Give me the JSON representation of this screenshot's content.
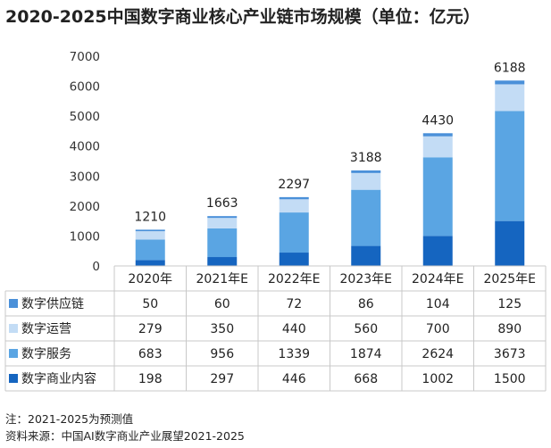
{
  "title": "2020-2025中国数字商业核心产业链市场规模（单位：亿元）",
  "notes": {
    "note": "注：2021-2025为预测值",
    "source": "资料来源：中国AI数字商业产业展望2021-2025"
  },
  "chart_data": {
    "type": "bar",
    "stacked": true,
    "categories": [
      "2020年",
      "2021年E",
      "2022年E",
      "2023年E",
      "2024年E",
      "2025年E"
    ],
    "ylim": [
      0,
      7000
    ],
    "yticks": [
      0,
      1000,
      2000,
      3000,
      4000,
      5000,
      6000,
      7000
    ],
    "totals": [
      1210,
      1663,
      2297,
      3188,
      4430,
      6188
    ],
    "series": [
      {
        "name": "数字商业内容",
        "color": "#1565c0",
        "values": [
          198,
          297,
          446,
          668,
          1002,
          1500
        ]
      },
      {
        "name": "数字服务",
        "color": "#5aa5e3",
        "values": [
          683,
          956,
          1339,
          1874,
          2624,
          3673
        ]
      },
      {
        "name": "数字运营",
        "color": "#c3dcf5",
        "values": [
          279,
          350,
          440,
          560,
          700,
          890
        ]
      },
      {
        "name": "数字供应链",
        "color": "#4a90d9",
        "values": [
          50,
          60,
          72,
          86,
          104,
          125
        ]
      }
    ],
    "table_row_order": [
      "数字供应链",
      "数字运营",
      "数字服务",
      "数字商业内容"
    ],
    "grid": false
  }
}
